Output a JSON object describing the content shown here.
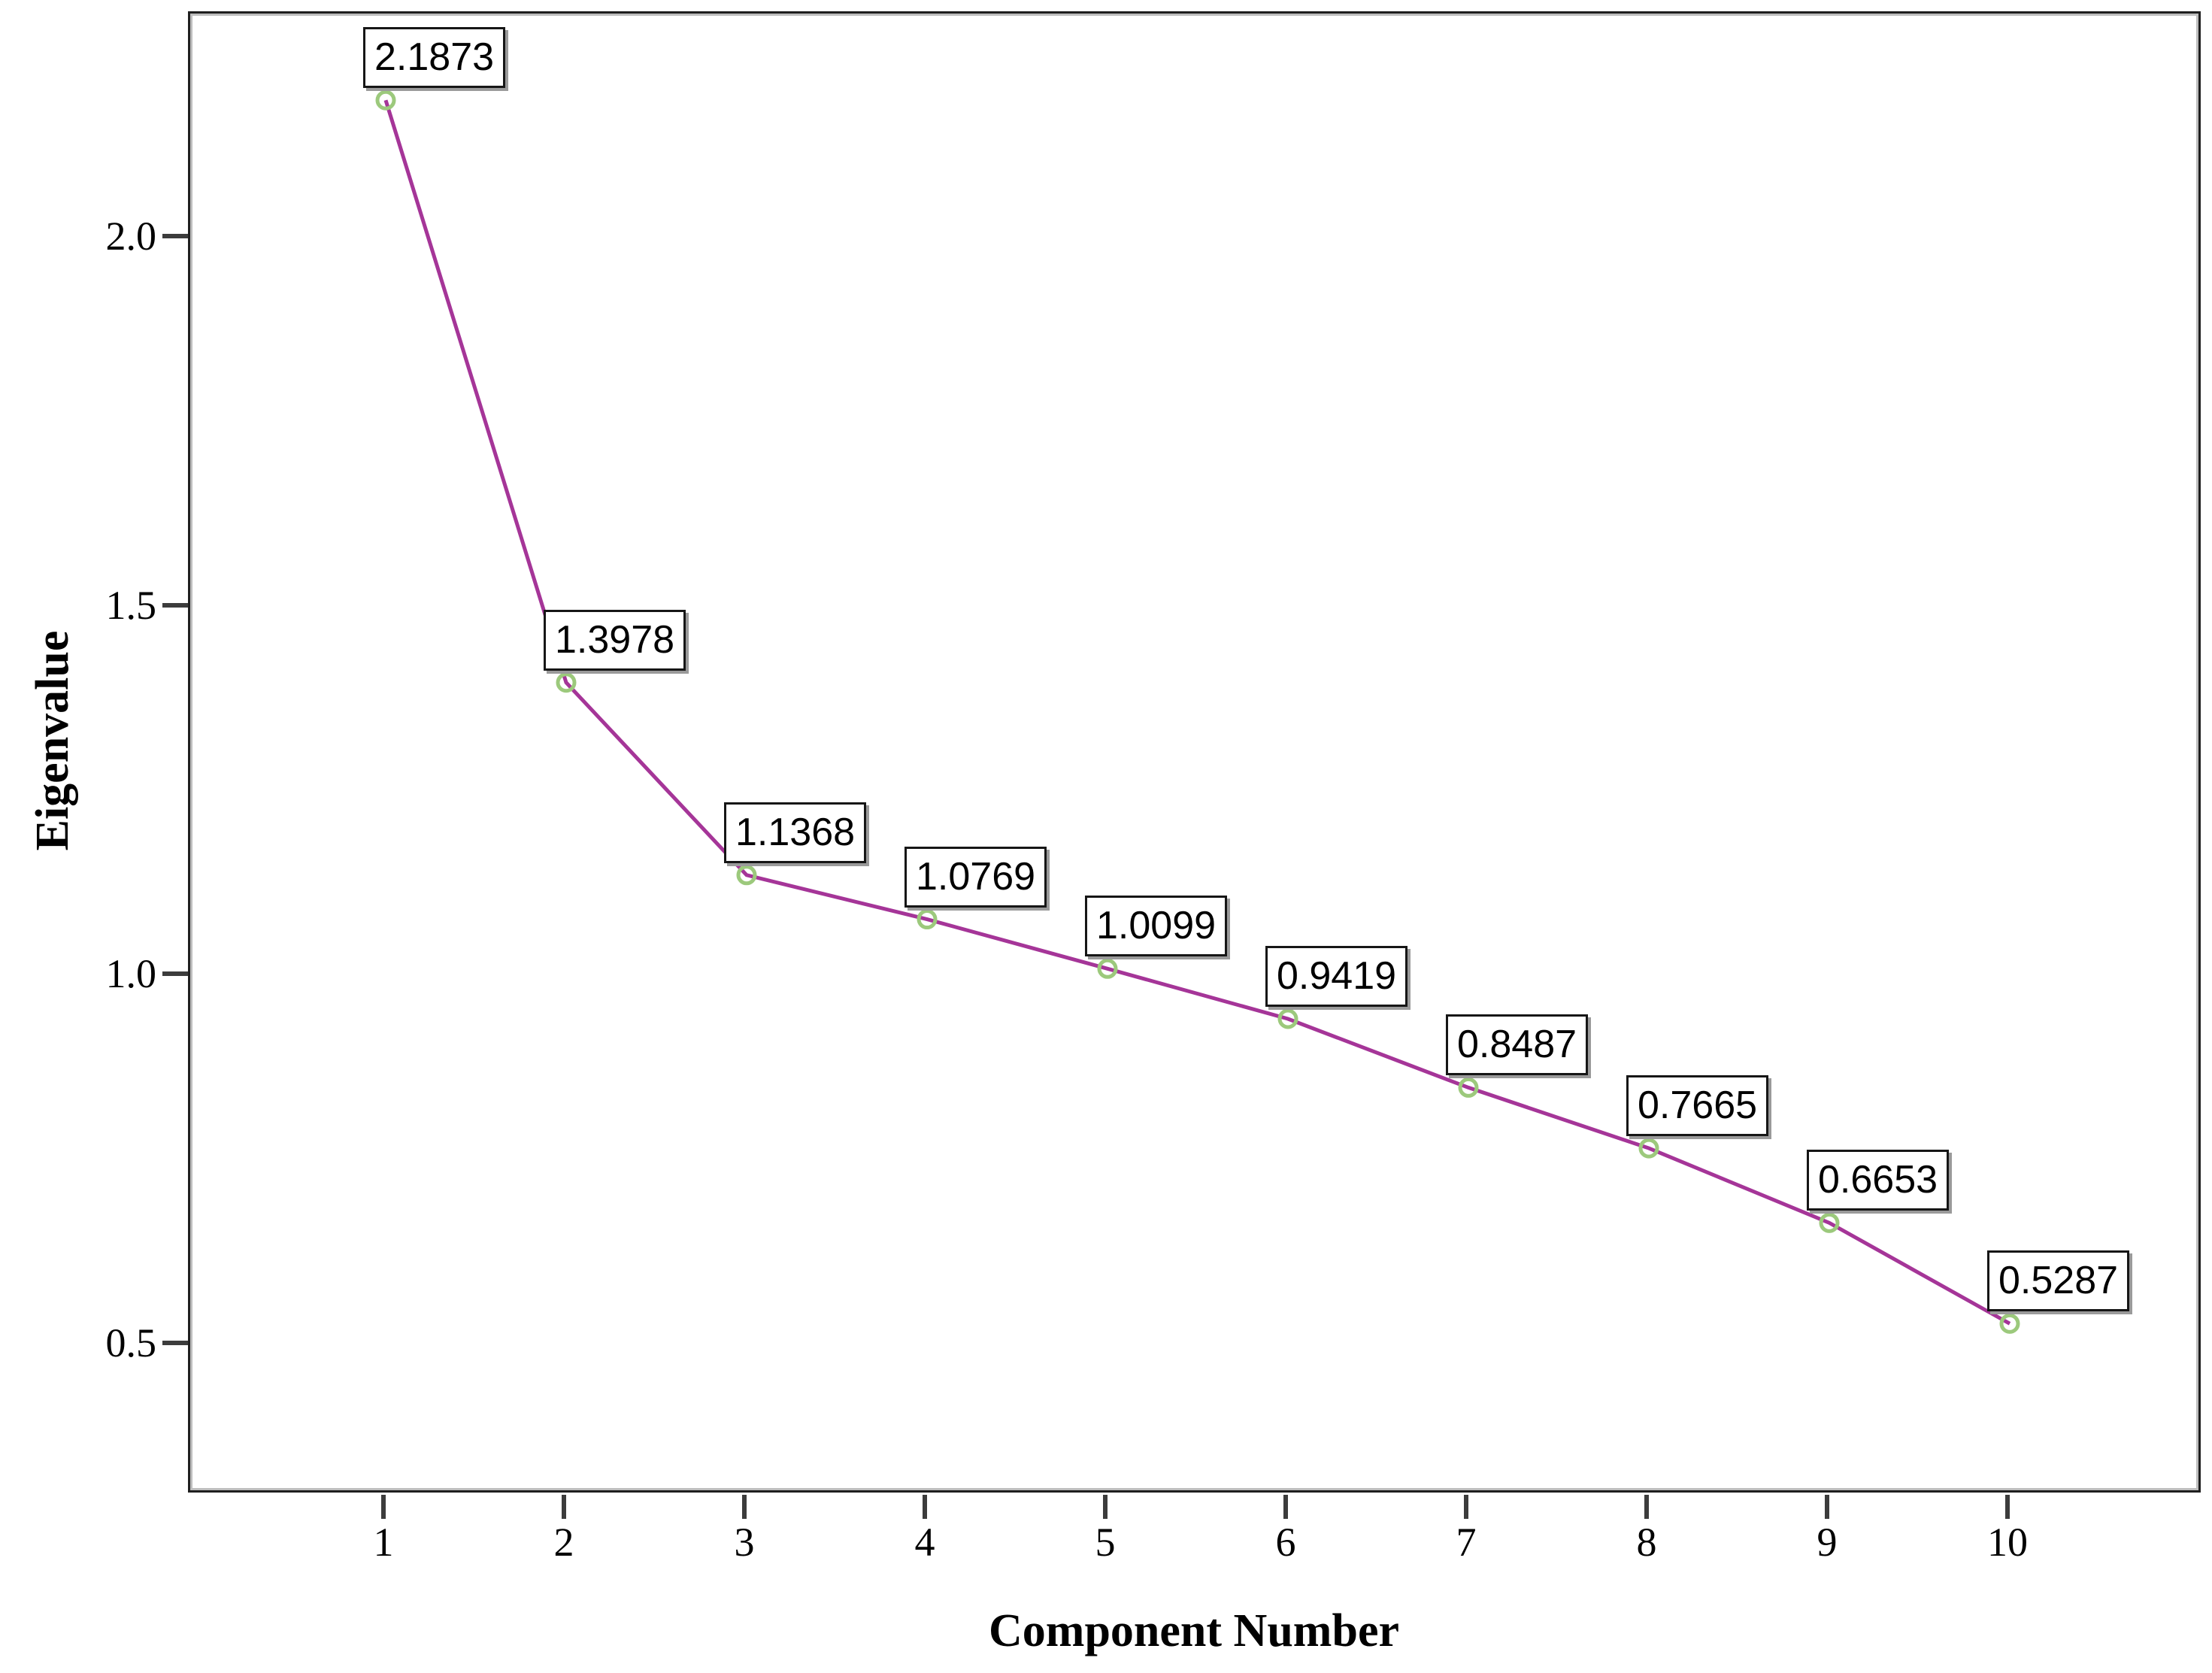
{
  "chart_data": {
    "type": "line",
    "title": "",
    "xlabel": "Component Number",
    "ylabel": "Eigenvalue",
    "x": [
      1,
      2,
      3,
      4,
      5,
      6,
      7,
      8,
      9,
      10
    ],
    "series": [
      {
        "name": "Eigenvalue",
        "values": [
          2.1873,
          1.3978,
          1.1368,
          1.0769,
          1.0099,
          0.9419,
          0.8487,
          0.7665,
          0.6653,
          0.5287
        ]
      }
    ],
    "point_labels": [
      "2.1873",
      "1.3978",
      "1.1368",
      "1.0769",
      "1.0099",
      "0.9419",
      "0.8487",
      "0.7665",
      "0.6653",
      "0.5287"
    ],
    "x_tick_labels": [
      "1",
      "2",
      "3",
      "4",
      "5",
      "6",
      "7",
      "8",
      "9",
      "10"
    ],
    "y_tick_labels": [
      "2.0",
      "1.5",
      "1.0",
      "0.5"
    ],
    "y_tick_values": [
      2.0,
      1.5,
      1.0,
      0.5
    ],
    "xlim": [
      0.92,
      11.08
    ],
    "ylim": [
      0.3,
      2.3
    ],
    "grid": false,
    "legend": "none",
    "marker_shape": "open-circle",
    "styles": {
      "line_color": "#a53598",
      "marker_ring_color": "#9cc97c",
      "marker_fill": "none",
      "label_box_bg": "#ffffff",
      "label_box_border": "#161616",
      "label_box_shadow": "#9a9a9a",
      "frame_color": "#1f1f1f",
      "tick_color": "#3c3c3c",
      "text_color": "#000000",
      "background": "#ffffff"
    }
  }
}
